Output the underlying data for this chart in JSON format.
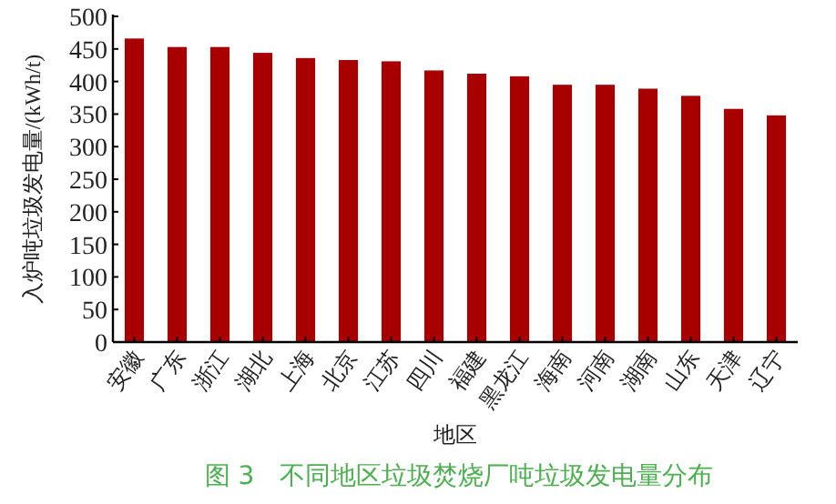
{
  "chart_data": {
    "type": "bar",
    "title": "图 3　不同地区垃圾焚烧厂吨垃圾发电量分布",
    "xlabel": "地区",
    "ylabel": "入炉吨垃圾发电量/(kWh/t)",
    "categories": [
      "安徽",
      "广东",
      "浙江",
      "湖北",
      "上海",
      "北京",
      "江苏",
      "四川",
      "福建",
      "黑龙江",
      "海南",
      "河南",
      "湖南",
      "山东",
      "天津",
      "辽宁"
    ],
    "values": [
      466,
      453,
      453,
      444,
      436,
      433,
      431,
      417,
      412,
      408,
      395,
      395,
      389,
      378,
      358,
      348
    ],
    "color": "#a80000",
    "ylim": [
      0,
      500
    ],
    "yticks": [
      0,
      50,
      100,
      150,
      200,
      250,
      300,
      350,
      400,
      450,
      500
    ],
    "grid": false
  }
}
